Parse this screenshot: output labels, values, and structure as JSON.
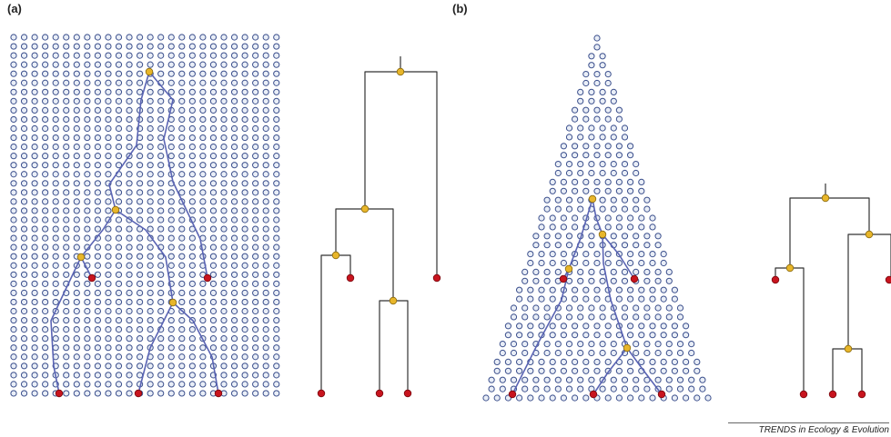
{
  "panels": {
    "a": {
      "label": "(a)"
    },
    "b": {
      "label": "(b)"
    }
  },
  "credit": "TRENDS in Ecology & Evolution",
  "colors": {
    "node_fill": "#e9eef7",
    "node_stroke": "#3b4f8c",
    "lineage": "#5a64b4",
    "tree_line": "#333333",
    "coalescent": "#e8b62a",
    "sample": "#c8141e"
  }
}
